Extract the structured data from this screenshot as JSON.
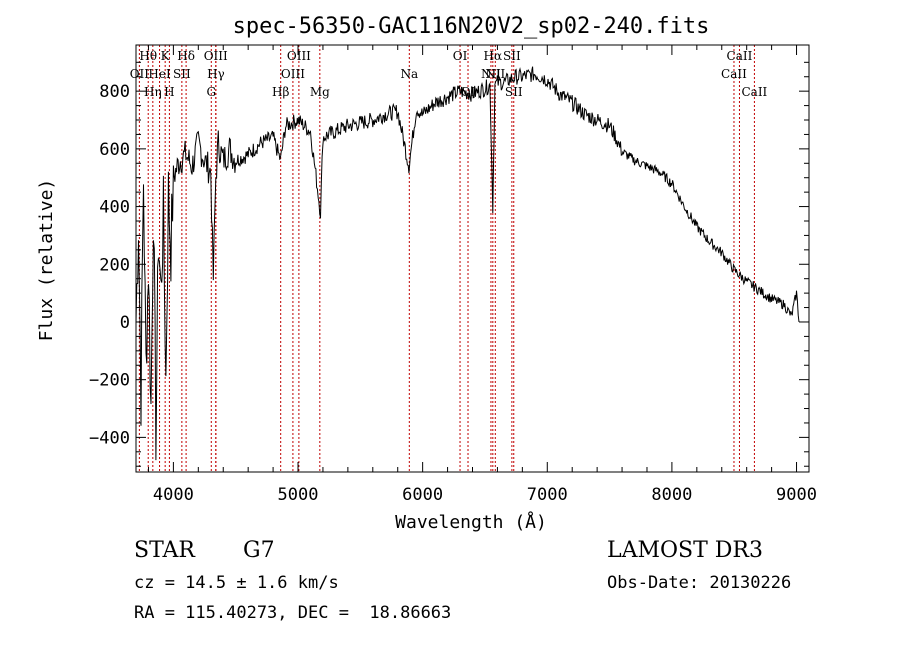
{
  "chart_data": {
    "type": "line",
    "title": "spec-56350-GAC116N20V2_sp02-240.fits",
    "xlabel": "Wavelength (Å)",
    "ylabel": "Flux (relative)",
    "xlim": [
      3700,
      9100
    ],
    "ylim": [
      -520,
      960
    ],
    "xticks": [
      4000,
      5000,
      6000,
      7000,
      8000,
      9000
    ],
    "yticks": [
      -400,
      -200,
      0,
      200,
      400,
      600,
      800
    ],
    "series": [
      {
        "name": "spectrum",
        "color": "#000000",
        "x": [
          3700,
          3720,
          3740,
          3760,
          3780,
          3800,
          3820,
          3840,
          3860,
          3880,
          3900,
          3920,
          3940,
          3960,
          3980,
          4000,
          4050,
          4100,
          4150,
          4200,
          4250,
          4300,
          4320,
          4340,
          4360,
          4400,
          4450,
          4500,
          4600,
          4700,
          4800,
          4860,
          4900,
          5000,
          5100,
          5180,
          5200,
          5300,
          5400,
          5500,
          5600,
          5700,
          5800,
          5890,
          5950,
          6000,
          6100,
          6200,
          6300,
          6400,
          6500,
          6540,
          6563,
          6580,
          6600,
          6650,
          6700,
          6750,
          6800,
          6900,
          7000,
          7100,
          7200,
          7300,
          7400,
          7500,
          7550,
          7600,
          7700,
          7800,
          7900,
          8000,
          8100,
          8200,
          8300,
          8400,
          8500,
          8600,
          8700,
          8800,
          8900,
          8960,
          9000,
          9020
        ],
        "values": [
          0,
          350,
          -250,
          500,
          -150,
          200,
          -300,
          400,
          -380,
          300,
          100,
          380,
          -200,
          450,
          250,
          500,
          560,
          580,
          540,
          620,
          560,
          520,
          150,
          500,
          620,
          560,
          600,
          560,
          580,
          620,
          640,
          560,
          680,
          700,
          660,
          380,
          640,
          660,
          680,
          690,
          700,
          720,
          730,
          540,
          740,
          720,
          760,
          780,
          800,
          790,
          810,
          820,
          400,
          820,
          830,
          830,
          840,
          850,
          850,
          860,
          840,
          790,
          760,
          720,
          700,
          680,
          640,
          590,
          560,
          540,
          520,
          480,
          400,
          330,
          280,
          240,
          180,
          140,
          110,
          80,
          60,
          20,
          100,
          0
        ]
      }
    ],
    "lines": [
      {
        "label": "Hθ",
        "x": 3798,
        "row": 1
      },
      {
        "label": "OII",
        "x": 3727,
        "row": 2
      },
      {
        "label": "Hη",
        "x": 3835,
        "row": 3
      },
      {
        "label": "HeI",
        "x": 3889,
        "row": 2
      },
      {
        "label": "K",
        "x": 3934,
        "row": 1
      },
      {
        "label": "H",
        "x": 3968,
        "row": 3
      },
      {
        "label": "SII",
        "x": 4068,
        "row": 2
      },
      {
        "label": "Hδ",
        "x": 4102,
        "row": 1
      },
      {
        "label": "OIII",
        "x": 4340,
        "row": 1
      },
      {
        "label": "Hγ",
        "x": 4341,
        "row": 2
      },
      {
        "label": "G",
        "x": 4304,
        "row": 3
      },
      {
        "label": "Hβ",
        "x": 4861,
        "row": 3
      },
      {
        "label": "OIII",
        "x": 5007,
        "row": 1
      },
      {
        "label": "OIII",
        "x": 4959,
        "row": 2
      },
      {
        "label": "Mg",
        "x": 5175,
        "row": 3
      },
      {
        "label": "Na",
        "x": 5893,
        "row": 2
      },
      {
        "label": "OI",
        "x": 6300,
        "row": 1
      },
      {
        "label": "OI",
        "x": 6364,
        "row": 3
      },
      {
        "label": "Hα",
        "x": 6563,
        "row": 1
      },
      {
        "label": "NII",
        "x": 6548,
        "row": 2
      },
      {
        "label": "NII",
        "x": 6583,
        "row": 2
      },
      {
        "label": "SII",
        "x": 6716,
        "row": 1
      },
      {
        "label": "SII",
        "x": 6731,
        "row": 3
      },
      {
        "label": "CaII",
        "x": 8542,
        "row": 1
      },
      {
        "label": "CaII",
        "x": 8498,
        "row": 2
      },
      {
        "label": "CaII",
        "x": 8662,
        "row": 3
      }
    ]
  },
  "info": {
    "object_class": "STAR",
    "subclass": "G7",
    "survey": "LAMOST DR3",
    "redshift": "cz = 14.5 ± 1.6 km/s",
    "obs_date": "Obs-Date: 20130226",
    "coords": "RA = 115.40273, DEC =  18.86663"
  }
}
